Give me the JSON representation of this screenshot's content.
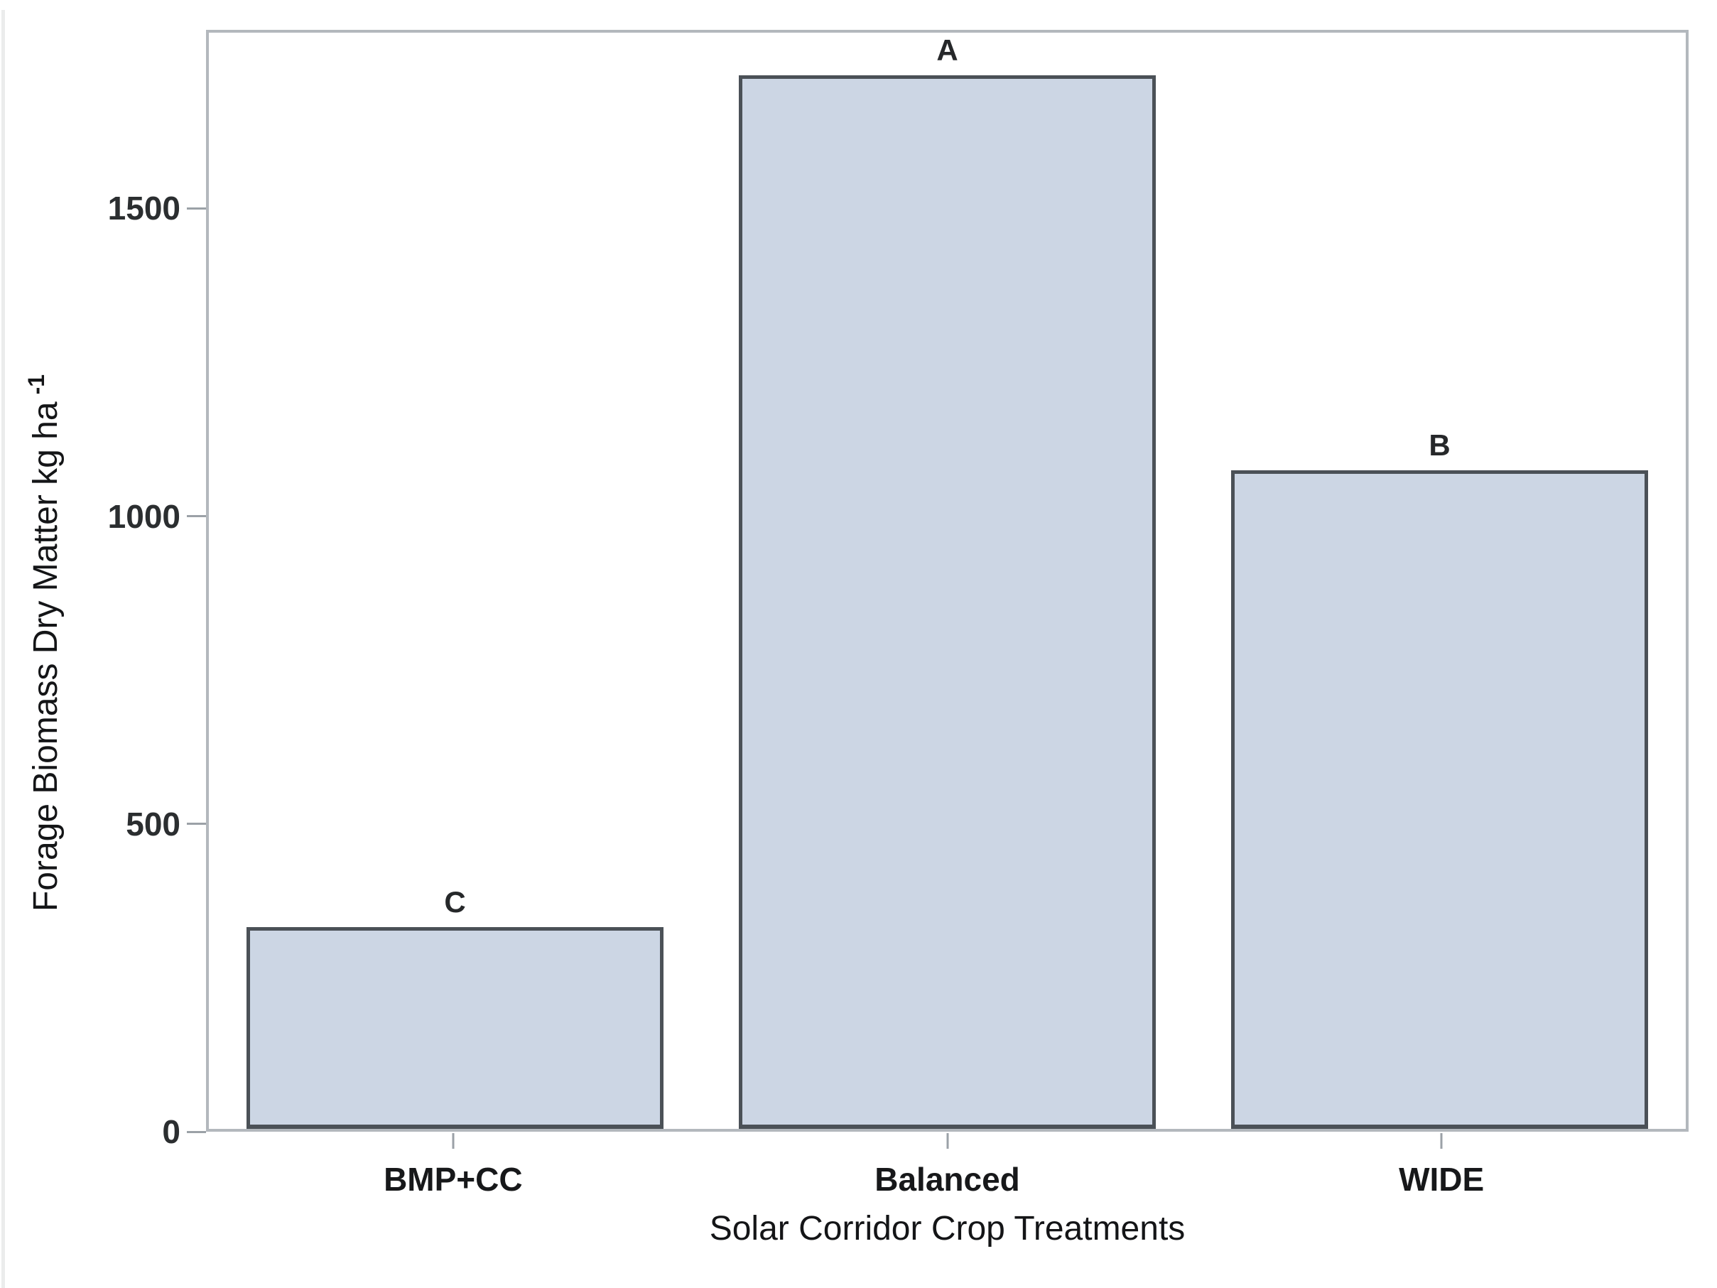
{
  "chart_data": {
    "type": "bar",
    "categories": [
      "BMP+CC",
      "Balanced",
      "WIDE"
    ],
    "values": [
      330,
      1720,
      1075
    ],
    "bar_letters": [
      "C",
      "A",
      "B"
    ],
    "xlabel": "Solar Corridor Crop Treatments",
    "ylabel": "Forage Biomass Dry Matter kg ha",
    "ylabel_superscript": "-1",
    "yticks": [
      0,
      500,
      1000,
      1500
    ],
    "ylim": [
      0,
      1790
    ],
    "grid": false,
    "legend_position": "none",
    "colors": {
      "bar_fill": "#ccd6e4",
      "bar_border": "#4b5157",
      "frame": "#b3b8bd",
      "tick_mark": "#9ba1a7",
      "tick_label_text": "#2b2e30",
      "category_text": "#17181a",
      "axis_title_text": "#141517"
    },
    "layout": {
      "bar_width_fraction_of_plot": 0.282,
      "letter_gap_px": 14
    }
  }
}
